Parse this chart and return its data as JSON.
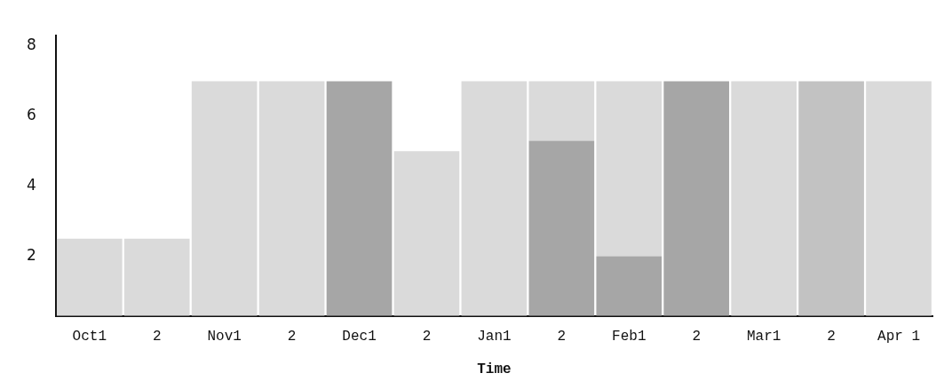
{
  "chart_data": {
    "type": "bar",
    "xlabel": "Time",
    "stacked": true,
    "categories": [
      "Oct1",
      "2",
      "Nov1",
      "2",
      "Dec1",
      "2",
      "Jan1",
      "2",
      "Feb1",
      "2",
      "Mar1",
      "2",
      "Apr 1"
    ],
    "series": [
      {
        "color": "#a6a6a6",
        "values": [
          null,
          null,
          null,
          null,
          7,
          null,
          null,
          5.3,
          2,
          7,
          null,
          null,
          null
        ]
      },
      {
        "color": "#dadada",
        "values": [
          2.5,
          2.5,
          7,
          7,
          null,
          5,
          7,
          1.7,
          5,
          null,
          7,
          null,
          7
        ]
      },
      {
        "color": "#c2c2c2",
        "values": [
          null,
          null,
          null,
          null,
          null,
          null,
          null,
          null,
          null,
          null,
          null,
          7,
          null
        ]
      }
    ],
    "ylim": [
      0.3,
      8.3
    ],
    "yticks": [
      2,
      4,
      6,
      8
    ]
  }
}
